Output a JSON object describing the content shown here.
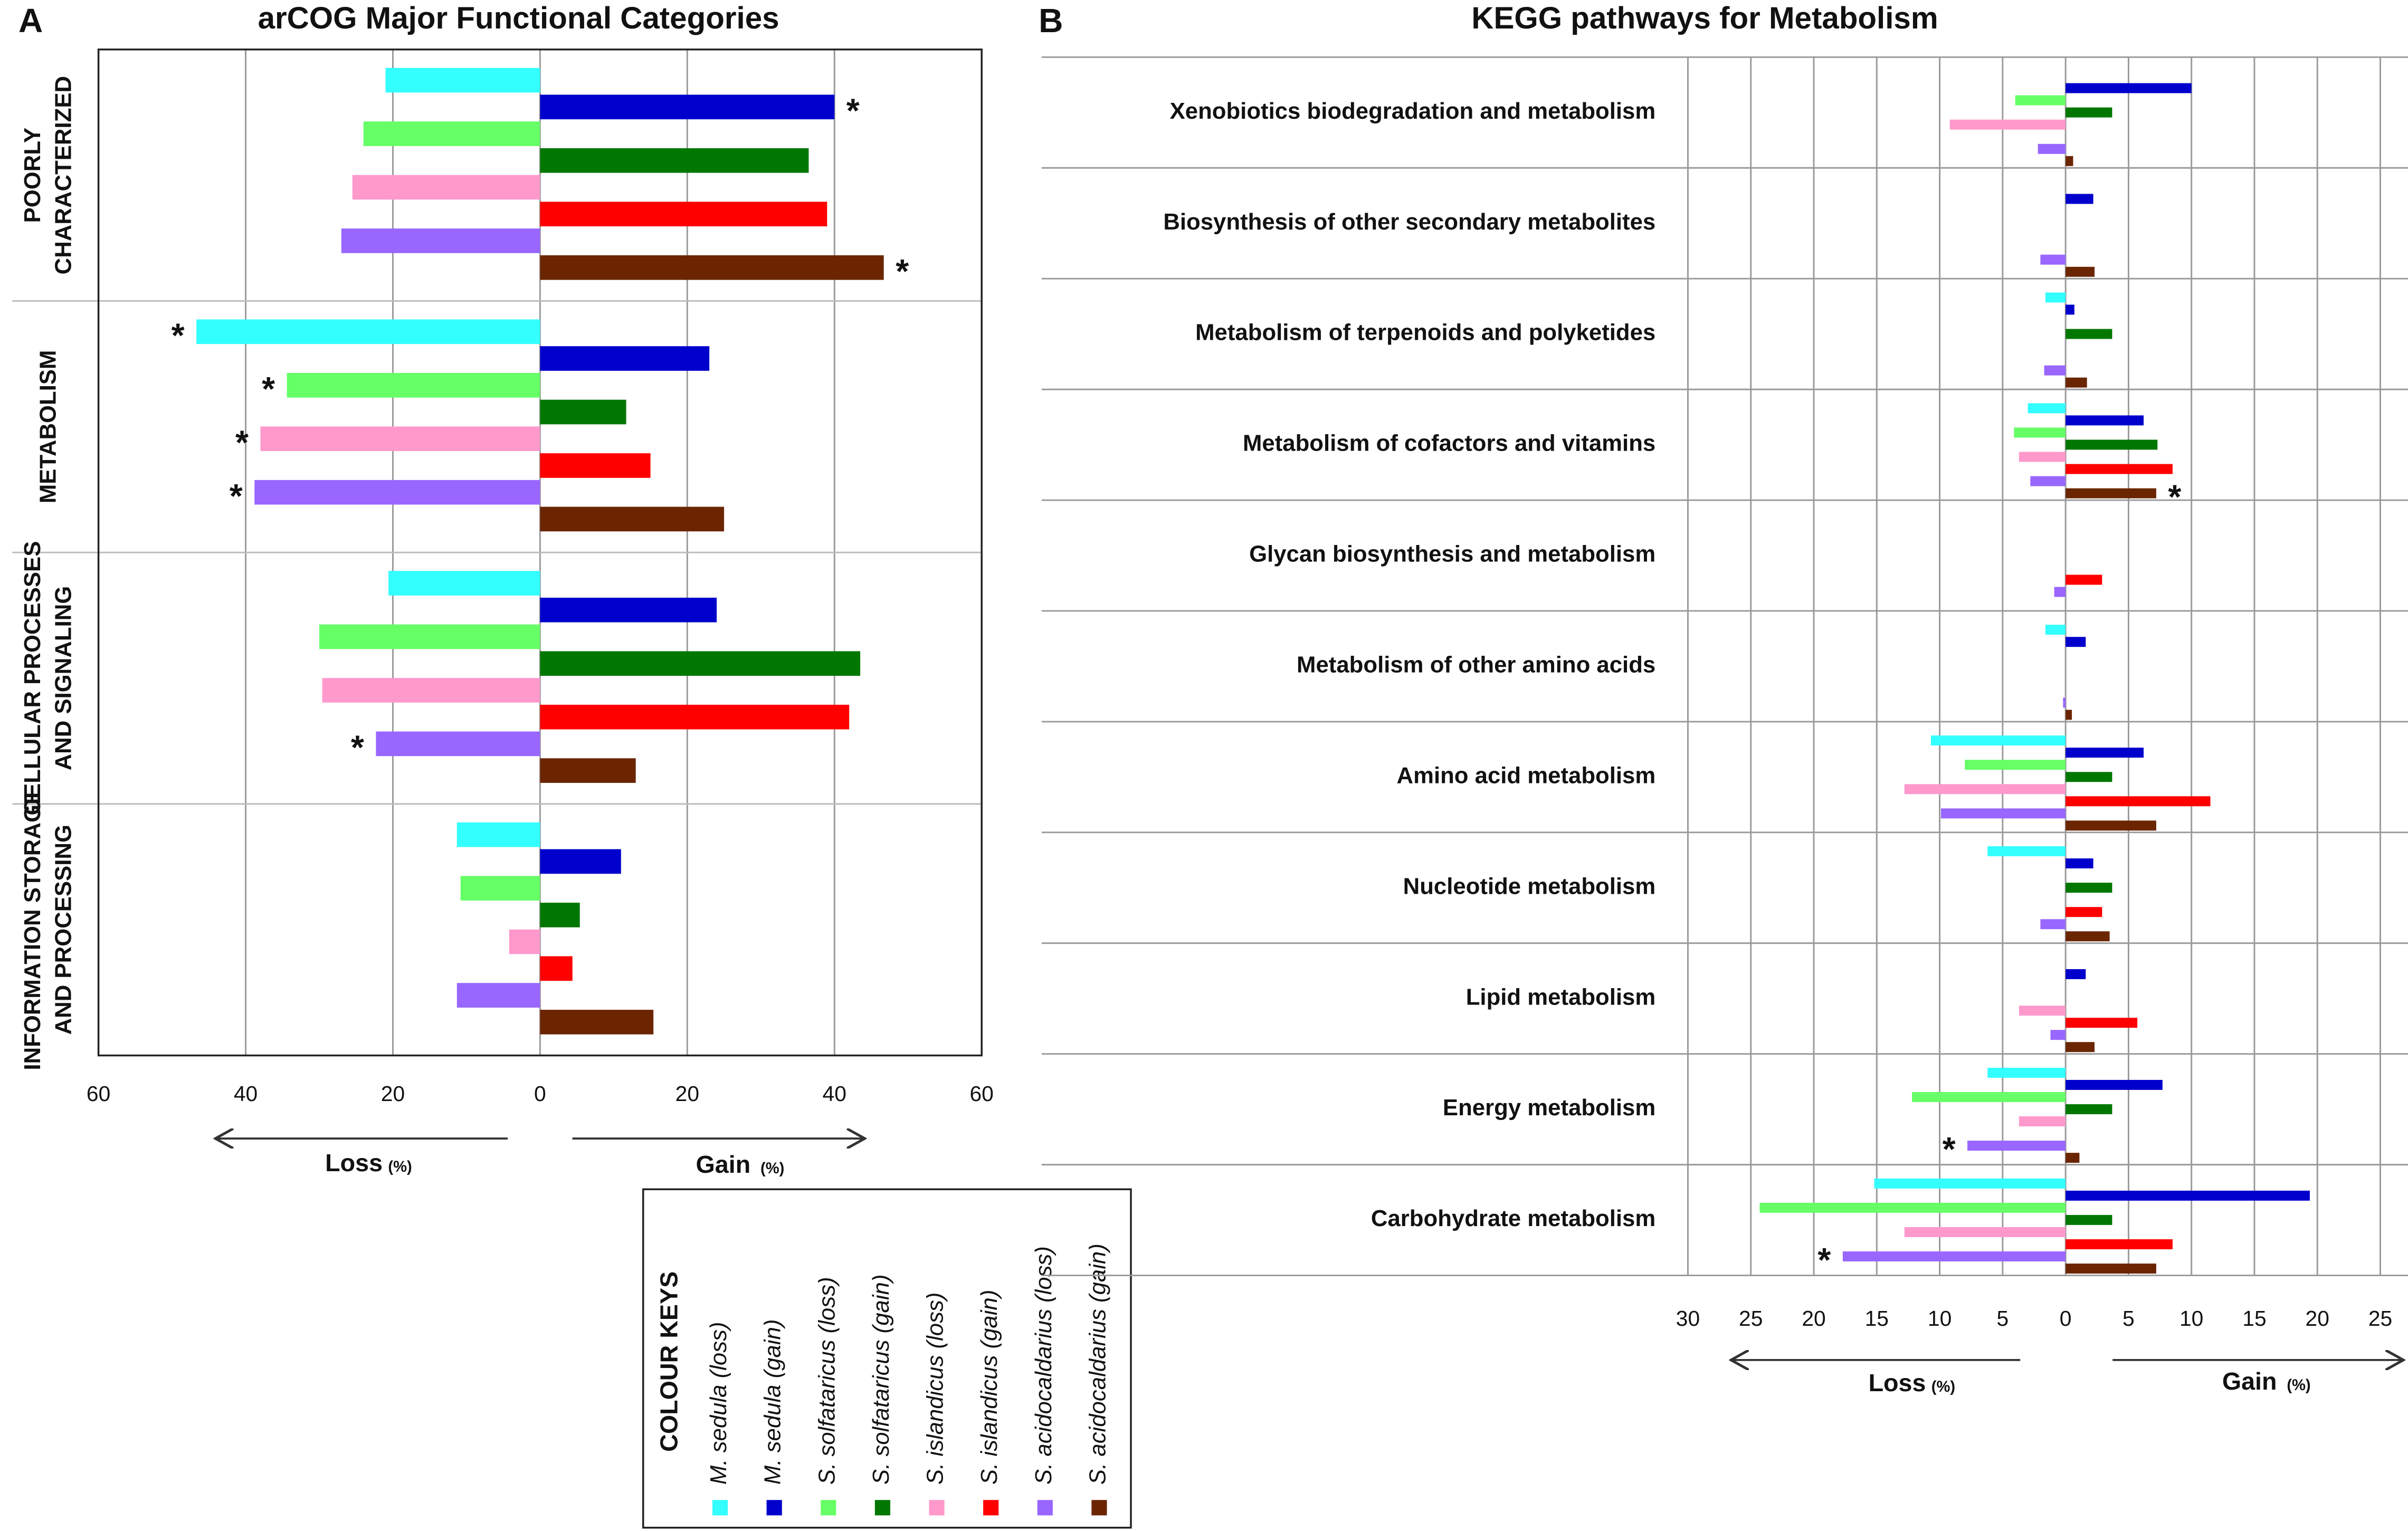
{
  "chart_data": [
    {
      "type": "bar",
      "orientation": "horizontal",
      "panel": "A",
      "title": "arCOG Major Functional Categories",
      "categories": [
        "POORLY CHARACTERIZED",
        "METABOLISM",
        "CELLULAR PROCESSES AND SIGNALING",
        "INFORMATION STORAGE AND PROCESSING"
      ],
      "series": [
        {
          "name": "M. sedula (loss)",
          "color": "#33ffff",
          "values": [
            -21,
            -46.7,
            -20.6,
            -11.3
          ],
          "annotations": [
            null,
            "*",
            null,
            null
          ]
        },
        {
          "name": "M. sedula (gain)",
          "color": "#0000cc",
          "values": [
            40,
            23,
            24,
            11
          ],
          "annotations": [
            "*",
            null,
            null,
            null
          ]
        },
        {
          "name": "S. solfataricus (loss)",
          "color": "#66ff66",
          "values": [
            -24,
            -34.4,
            -30,
            -10.8
          ],
          "annotations": [
            null,
            "*",
            null,
            null
          ]
        },
        {
          "name": "S. solfataricus (gain)",
          "color": "#007700",
          "values": [
            36.5,
            11.7,
            43.5,
            5.4
          ],
          "annotations": [
            null,
            null,
            null,
            null
          ]
        },
        {
          "name": "S. islandicus (loss)",
          "color": "#ff99cc",
          "values": [
            -25.5,
            -38,
            -29.6,
            -4.2
          ],
          "annotations": [
            null,
            "*",
            null,
            null
          ]
        },
        {
          "name": "S. islandicus (gain)",
          "color": "#ff0000",
          "values": [
            39,
            15,
            42,
            4.4
          ],
          "annotations": [
            null,
            null,
            null,
            null
          ]
        },
        {
          "name": "S. acidocaldarius (loss)",
          "color": "#9966ff",
          "values": [
            -27,
            -38.8,
            -22.3,
            -11.3
          ],
          "annotations": [
            null,
            "*",
            "*",
            null
          ]
        },
        {
          "name": "S. acidocaldarius (gain)",
          "color": "#6b2500",
          "values": [
            46.7,
            25,
            13,
            15.4
          ],
          "annotations": [
            "*",
            null,
            null,
            null
          ]
        }
      ],
      "xlim": [
        -60,
        60
      ],
      "xticks": [
        {
          "value": -60,
          "label": "60"
        },
        {
          "value": -40,
          "label": "40"
        },
        {
          "value": -20,
          "label": "20"
        },
        0,
        20,
        40,
        60
      ],
      "grid": true,
      "loss_label": "Loss",
      "gain_label": "Gain",
      "unit_label": "(%)",
      "legend_title": "COLOUR KEYS"
    },
    {
      "type": "bar",
      "orientation": "horizontal",
      "panel": "B",
      "title": "KEGG pathways for Metabolism",
      "categories": [
        "Xenobiotics biodegradation and metabolism",
        "Biosynthesis of other secondary metabolites",
        "Metabolism of terpenoids and polyketides",
        "Metabolism of cofactors and vitamins",
        "Glycan biosynthesis and metabolism",
        "Metabolism of other amino acids",
        "Amino acid metabolism",
        "Nucleotide metabolism",
        "Lipid metabolism",
        "Energy metabolism",
        "Carbohydrate metabolism"
      ],
      "series": [
        {
          "color": "#33ffff",
          "values": [
            0,
            0,
            -1.6,
            -3,
            0,
            -1.6,
            -10.7,
            -6.2,
            0,
            -6.2,
            -15.2
          ],
          "annotations": [
            null,
            null,
            null,
            null,
            null,
            null,
            null,
            null,
            null,
            null,
            null
          ]
        },
        {
          "color": "#0000cc",
          "values": [
            10,
            2.2,
            0.7,
            6.2,
            0,
            1.6,
            6.2,
            2.2,
            1.6,
            7.7,
            19.4
          ],
          "annotations": [
            null,
            null,
            null,
            null,
            null,
            null,
            null,
            null,
            null,
            null,
            null
          ]
        },
        {
          "color": "#66ff66",
          "values": [
            -4,
            0,
            0,
            -4.1,
            0,
            0,
            -8,
            0,
            0,
            -12.2,
            -24.3
          ],
          "annotations": [
            null,
            null,
            null,
            null,
            null,
            null,
            null,
            null,
            null,
            null,
            null
          ]
        },
        {
          "color": "#007700",
          "values": [
            3.7,
            0,
            3.7,
            7.3,
            0,
            0,
            3.7,
            3.7,
            0,
            3.7,
            3.7
          ],
          "annotations": [
            null,
            null,
            null,
            null,
            null,
            null,
            null,
            null,
            null,
            null,
            null
          ]
        },
        {
          "color": "#ff99cc",
          "values": [
            -9.2,
            0,
            0,
            -3.7,
            0,
            0,
            -12.8,
            0,
            -3.7,
            -3.7,
            -12.8
          ],
          "annotations": [
            null,
            null,
            null,
            null,
            null,
            null,
            null,
            null,
            null,
            null,
            null
          ]
        },
        {
          "color": "#ff0000",
          "values": [
            0,
            0,
            0,
            8.5,
            2.9,
            0,
            11.5,
            2.9,
            5.7,
            0,
            8.5
          ],
          "annotations": [
            null,
            null,
            null,
            null,
            null,
            null,
            null,
            null,
            null,
            null,
            null
          ]
        },
        {
          "color": "#9966ff",
          "values": [
            -2.2,
            -2,
            -1.7,
            -2.8,
            -0.9,
            -0.2,
            -9.9,
            -2,
            -1.2,
            -7.8,
            -17.7
          ],
          "annotations": [
            null,
            null,
            null,
            null,
            null,
            null,
            null,
            null,
            null,
            "*",
            "*"
          ]
        },
        {
          "color": "#6b2500",
          "values": [
            0.6,
            2.3,
            1.7,
            7.2,
            0,
            0.5,
            7.2,
            3.5,
            2.3,
            1.1,
            7.2
          ],
          "annotations": [
            null,
            null,
            null,
            "*",
            null,
            null,
            null,
            null,
            null,
            null,
            null
          ]
        }
      ],
      "xlim": [
        -30,
        25
      ],
      "xticks": [
        {
          "value": -30,
          "label": "30"
        },
        {
          "value": -25,
          "label": "25"
        },
        {
          "value": -20,
          "label": "20"
        },
        {
          "value": -15,
          "label": "15"
        },
        {
          "value": -10,
          "label": "10"
        },
        {
          "value": -5,
          "label": "5"
        },
        0,
        5,
        10,
        15,
        20,
        25
      ],
      "grid": true,
      "loss_label": "Loss",
      "gain_label": "Gain",
      "unit_label": "(%)"
    }
  ]
}
